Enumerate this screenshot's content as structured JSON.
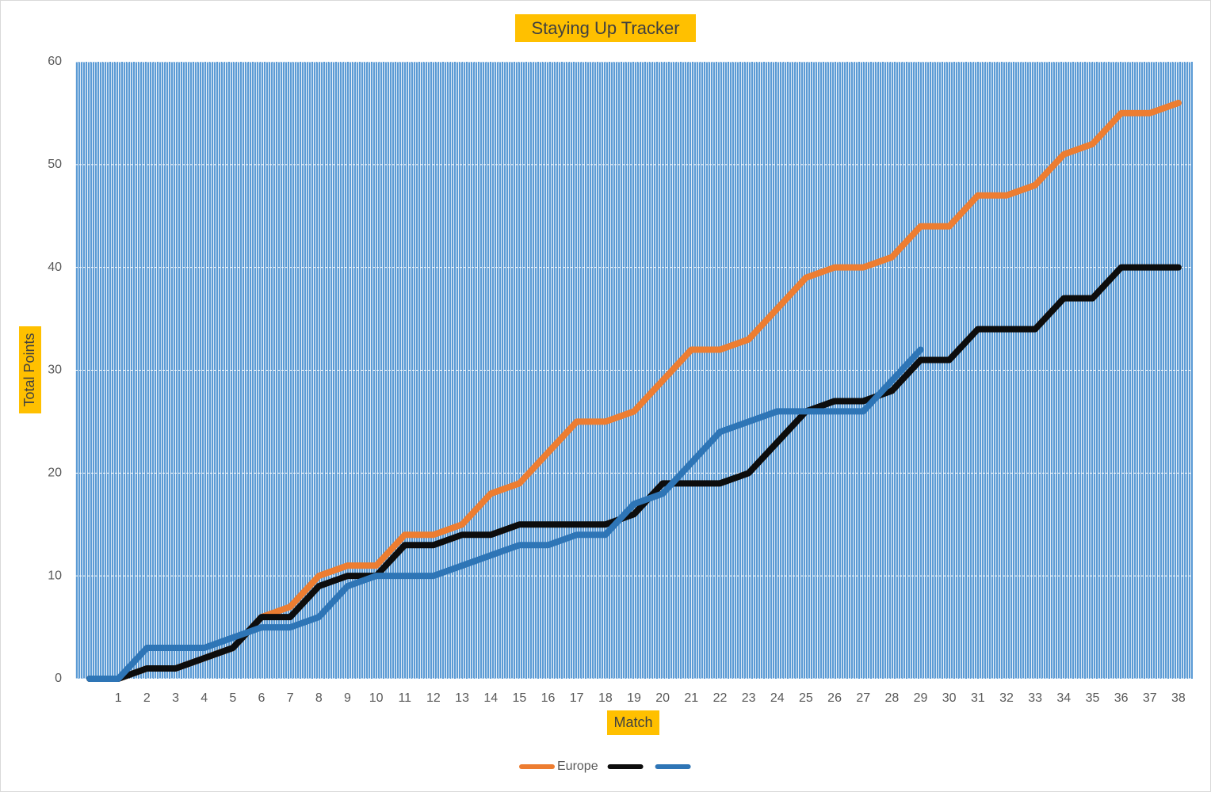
{
  "chart_data": {
    "type": "line",
    "title": "Staying Up Tracker",
    "x_label": "Match",
    "y_label": "Total Points",
    "categories": [
      null,
      "1",
      "2",
      "3",
      "4",
      "5",
      "6",
      "7",
      "8",
      "9",
      "10",
      "11",
      "12",
      "13",
      "14",
      "15",
      "16",
      "17",
      "18",
      "19",
      "20",
      "21",
      "22",
      "23",
      "24",
      "25",
      "26",
      "27",
      "28",
      "29",
      "30",
      "31",
      "32",
      "33",
      "34",
      "35",
      "36",
      "37",
      "38"
    ],
    "series": [
      {
        "name": "Europe",
        "color": "#ed7d31",
        "values": [
          0,
          0,
          1,
          1,
          2,
          3,
          6,
          7,
          10,
          11,
          11,
          14,
          14,
          15,
          18,
          19,
          22,
          25,
          25,
          26,
          29,
          32,
          32,
          33,
          36,
          39,
          40,
          40,
          41,
          44,
          44,
          47,
          47,
          48,
          51,
          52,
          55,
          55,
          56
        ]
      },
      {
        "color": "#0d0d0d",
        "values": [
          0,
          0,
          1,
          1,
          2,
          3,
          6,
          6,
          9,
          10,
          10,
          13,
          13,
          14,
          14,
          15,
          15,
          15,
          15,
          16,
          19,
          19,
          19,
          20,
          23,
          26,
          27,
          27,
          28,
          31,
          31,
          34,
          34,
          34,
          37,
          37,
          40,
          40,
          40
        ]
      },
      {
        "color": "#2e75b6",
        "values": [
          0,
          0,
          3,
          3,
          3,
          4,
          5,
          5,
          6,
          9,
          10,
          10,
          10,
          11,
          12,
          13,
          13,
          14,
          14,
          17,
          18,
          21,
          24,
          25,
          26,
          26,
          26,
          26,
          29,
          32,
          null,
          null,
          null,
          null,
          null,
          null,
          null,
          null,
          null
        ]
      }
    ],
    "ylim": [
      0,
      60
    ],
    "yticks": [
      0,
      10,
      20,
      30,
      40,
      50,
      60
    ],
    "grid": true,
    "legend": "bottom"
  }
}
